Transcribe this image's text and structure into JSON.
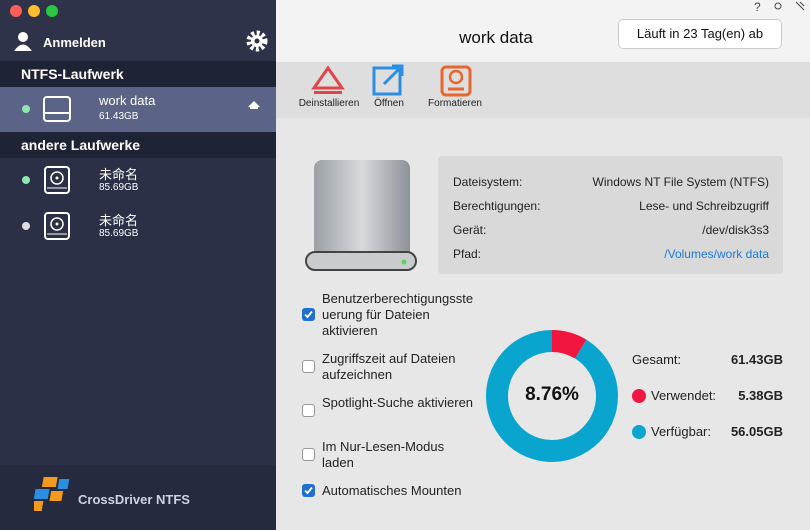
{
  "sidebar": {
    "account": "Anmelden",
    "sections": [
      {
        "title": "NTFS-Laufwerk",
        "drives": [
          {
            "name": "work data",
            "size": "61.43GB",
            "status_color": "#8ee6b0",
            "selected": true
          }
        ]
      },
      {
        "title": "andere Laufwerke",
        "drives": [
          {
            "name": "未命名",
            "size": "85.69GB",
            "status_color": "#8ee6b0",
            "selected": false
          },
          {
            "name": "未命名",
            "size": "85.69GB",
            "status_color": "#dddddd",
            "selected": false
          }
        ]
      }
    ],
    "brand": "CrossDriver NTFS"
  },
  "header": {
    "title": "work data",
    "trial": "Läuft in 23 Tag(en) ab"
  },
  "toolbar": [
    "Deinstallieren",
    "Öffnen",
    "Formatieren"
  ],
  "info": {
    "rows": [
      [
        "Dateisystem:",
        "Windows NT File System (NTFS)"
      ],
      [
        "Berechtigungen:",
        "Lese- und Schreibzugriff"
      ],
      [
        "Gerät:",
        "/dev/disk3s3"
      ],
      [
        "Pfad:",
        "/Volumes/work data"
      ]
    ]
  },
  "options": [
    {
      "label": "Benutzerberechtigungssteuerung für Dateien aktivieren",
      "checked": true
    },
    {
      "label": "Zugriffszeit auf Dateien aufzeichnen",
      "checked": false
    },
    {
      "label": "Spotlight-Suche aktivieren",
      "checked": false
    },
    {
      "label": "Im Nur-Lesen-Modus laden",
      "checked": false
    },
    {
      "label": "Automatisches Mounten",
      "checked": true
    }
  ],
  "usage": {
    "center": "8.76%",
    "total": {
      "label": "Gesamt:",
      "value": "61.43GB"
    },
    "segments": [
      {
        "label": "Verwendet:",
        "value": 5.38,
        "value_label": "5.38GB",
        "color": "#f0163f"
      },
      {
        "label": "Verfügbar:",
        "value": 56.05,
        "value_label": "56.05GB",
        "color": "#0aa5cf"
      }
    ]
  }
}
